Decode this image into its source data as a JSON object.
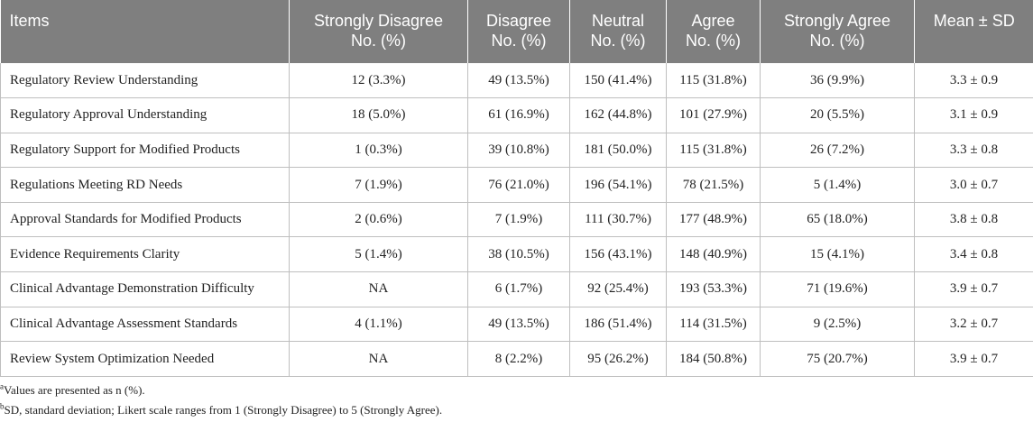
{
  "table": {
    "headers": [
      {
        "line1": "Items",
        "line2": ""
      },
      {
        "line1": "Strongly Disagree",
        "line2": "No. (%)"
      },
      {
        "line1": "Disagree",
        "line2": "No. (%)"
      },
      {
        "line1": "Neutral",
        "line2": "No. (%)"
      },
      {
        "line1": "Agree",
        "line2": "No. (%)"
      },
      {
        "line1": "Strongly Agree",
        "line2": "No. (%)"
      },
      {
        "line1": "Mean ± SD",
        "line2": ""
      }
    ],
    "rows": [
      [
        "Regulatory Review Understanding",
        "12 (3.3%)",
        "49 (13.5%)",
        "150 (41.4%)",
        "115 (31.8%)",
        "36 (9.9%)",
        "3.3 ± 0.9"
      ],
      [
        "Regulatory Approval Understanding",
        "18 (5.0%)",
        "61 (16.9%)",
        "162 (44.8%)",
        "101 (27.9%)",
        "20 (5.5%)",
        "3.1 ± 0.9"
      ],
      [
        "Regulatory Support for Modified Products",
        "1 (0.3%)",
        "39 (10.8%)",
        "181 (50.0%)",
        "115 (31.8%)",
        "26 (7.2%)",
        "3.3 ± 0.8"
      ],
      [
        "Regulations Meeting RD Needs",
        "7 (1.9%)",
        "76 (21.0%)",
        "196 (54.1%)",
        "78 (21.5%)",
        "5 (1.4%)",
        "3.0 ± 0.7"
      ],
      [
        "Approval Standards for Modified Products",
        "2 (0.6%)",
        "7 (1.9%)",
        "111 (30.7%)",
        "177 (48.9%)",
        "65 (18.0%)",
        "3.8 ± 0.8"
      ],
      [
        "Evidence Requirements Clarity",
        "5 (1.4%)",
        "38 (10.5%)",
        "156 (43.1%)",
        "148 (40.9%)",
        "15 (4.1%)",
        "3.4 ± 0.8"
      ],
      [
        "Clinical Advantage Demonstration Difficulty",
        "NA",
        "6 (1.7%)",
        "92 (25.4%)",
        "193 (53.3%)",
        "71 (19.6%)",
        "3.9 ± 0.7"
      ],
      [
        "Clinical Advantage Assessment Standards",
        "4 (1.1%)",
        "49 (13.5%)",
        "186 (51.4%)",
        "114 (31.5%)",
        "9 (2.5%)",
        "3.2 ± 0.7"
      ],
      [
        "Review System Optimization Needed",
        "NA",
        "8 (2.2%)",
        "95 (26.2%)",
        "184 (50.8%)",
        "75 (20.7%)",
        "3.9 ± 0.7"
      ]
    ]
  },
  "footnotes": [
    {
      "marker": "a",
      "text": "Values are presented as n (%)."
    },
    {
      "marker": "b",
      "text": "SD, standard deviation; Likert scale ranges from 1 (Strongly Disagree) to 5 (Strongly Agree)."
    }
  ],
  "colors": {
    "header_bg": "#7f7f7f",
    "header_text": "#ffffff",
    "grid": "#bfbfbf",
    "body_text": "#222222"
  }
}
